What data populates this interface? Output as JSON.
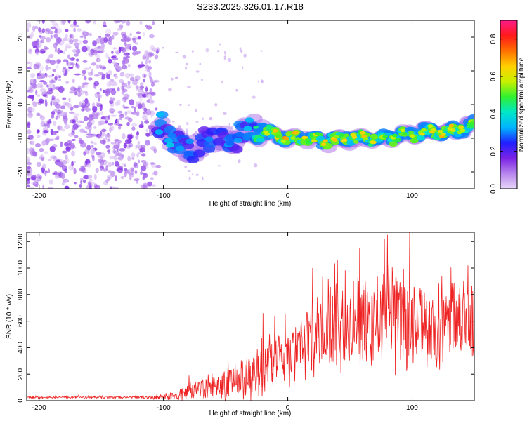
{
  "title": "S233.2025.326.01.17.R18",
  "chart_data": [
    {
      "type": "heatmap",
      "xlabel": "Height of straight line (km)",
      "ylabel": "Frequency (Hz)",
      "xlim": [
        -210,
        150
      ],
      "ylim": [
        -25,
        25
      ],
      "xticks": [
        -200,
        -100,
        0,
        100
      ],
      "xtick_labels": [
        "-200",
        "-100",
        "0",
        "100"
      ],
      "yticks": [
        -20,
        -10,
        0,
        10,
        20
      ],
      "ytick_labels": [
        "-20",
        "-10",
        "0",
        "10",
        "20"
      ],
      "colorbar": {
        "label": "Normalized spectral amplitude",
        "range": [
          0.0,
          0.9
        ],
        "ticks": [
          0.0,
          0.2,
          0.4,
          0.6,
          0.8
        ],
        "tick_labels": [
          "0.0",
          "0.2",
          "0.4",
          "0.6",
          "0.8"
        ],
        "colormap": [
          "#e8d8f8",
          "#b784ec",
          "#7a22e6",
          "#2020ff",
          "#00b4ff",
          "#00e8c8",
          "#30f030",
          "#c8f000",
          "#ffd000",
          "#ff7000",
          "#ff1a1a",
          "#ff1a8a"
        ]
      },
      "noise_region_x": [
        -210,
        -105
      ],
      "noise_amplitude": 0.1,
      "ridge": {
        "x": [
          -105,
          -100,
          -95,
          -90,
          -85,
          -80,
          -75,
          -70,
          -65,
          -60,
          -55,
          -50,
          -45,
          -40,
          -35,
          -30,
          -25,
          -20,
          -10,
          0,
          10,
          20,
          30,
          40,
          50,
          60,
          70,
          80,
          90,
          100,
          110,
          120,
          130,
          140,
          150
        ],
        "frequency": [
          -6,
          -7,
          -9,
          -11,
          -13,
          -14,
          -13,
          -12,
          -11,
          -10,
          -9,
          -10,
          -11,
          -9,
          -8,
          -8,
          -7,
          -8,
          -9,
          -10,
          -10,
          -10,
          -11,
          -10,
          -10,
          -10,
          -10,
          -10,
          -9,
          -9,
          -8,
          -8,
          -8,
          -7,
          -6
        ],
        "amplitude": [
          0.35,
          0.3,
          0.35,
          0.3,
          0.3,
          0.3,
          0.25,
          0.25,
          0.3,
          0.25,
          0.25,
          0.3,
          0.3,
          0.3,
          0.3,
          0.35,
          0.45,
          0.55,
          0.65,
          0.7,
          0.65,
          0.6,
          0.65,
          0.65,
          0.6,
          0.65,
          0.6,
          0.55,
          0.55,
          0.55,
          0.6,
          0.65,
          0.65,
          0.6,
          0.5
        ]
      }
    },
    {
      "type": "line",
      "xlabel": "Height of straight line (km)",
      "ylabel": "SNR (10 * v/v)",
      "xlim": [
        -210,
        150
      ],
      "ylim": [
        0,
        1270
      ],
      "xticks": [
        -200,
        -100,
        0,
        100
      ],
      "xtick_labels": [
        "-200",
        "-100",
        "0",
        "100"
      ],
      "yticks": [
        0,
        200,
        400,
        600,
        800,
        1000,
        1200
      ],
      "ytick_labels": [
        "0",
        "200",
        "400",
        "600",
        "800",
        "1000",
        "1200"
      ],
      "color": "#ee2222",
      "envelope": {
        "x": [
          -210,
          -110,
          -100,
          -90,
          -80,
          -70,
          -60,
          -50,
          -40,
          -30,
          -20,
          -10,
          0,
          10,
          20,
          30,
          40,
          50,
          60,
          70,
          80,
          90,
          100,
          110,
          120,
          130,
          140,
          150
        ],
        "baseline": [
          25,
          25,
          30,
          40,
          60,
          90,
          110,
          130,
          150,
          180,
          250,
          300,
          330,
          380,
          480,
          560,
          600,
          620,
          600,
          620,
          650,
          600,
          590,
          560,
          560,
          570,
          580,
          560
        ],
        "spread": [
          10,
          10,
          30,
          40,
          70,
          90,
          110,
          130,
          160,
          190,
          220,
          230,
          220,
          230,
          300,
          330,
          340,
          350,
          360,
          380,
          420,
          430,
          380,
          330,
          320,
          310,
          300,
          320
        ],
        "peaks": [
          [
            -20,
            660
          ],
          [
            20,
            1000
          ],
          [
            40,
            1060
          ],
          [
            80,
            1250
          ],
          [
            98,
            1270
          ],
          [
            145,
            1020
          ]
        ]
      }
    }
  ]
}
